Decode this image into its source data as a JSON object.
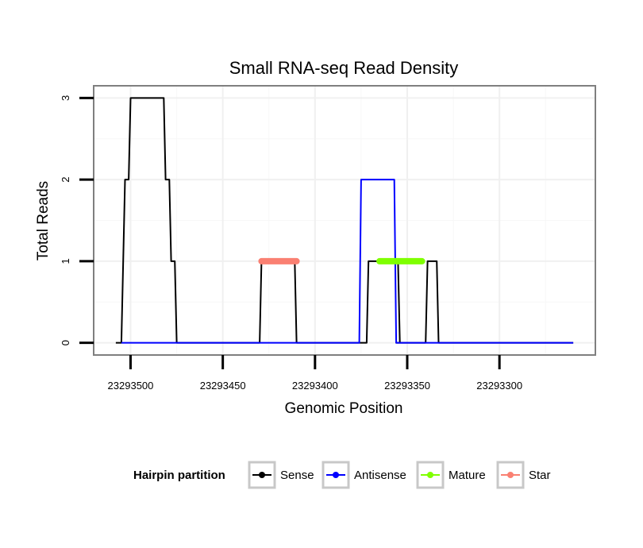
{
  "chart_data": {
    "type": "line",
    "title": "Small RNA-seq Read Density",
    "xlabel": "Genomic Position",
    "ylabel": "Total Reads",
    "x_reversed": true,
    "xlim": [
      23293520,
      23293248
    ],
    "ylim": [
      -0.15,
      3.15
    ],
    "x_ticks": [
      23293500,
      23293450,
      23293400,
      23293350,
      23293300
    ],
    "x_tick_labels": [
      "23293500",
      "23293450",
      "23293400",
      "23293350",
      "23293300"
    ],
    "y_ticks": [
      0,
      1,
      2,
      3
    ],
    "y_tick_labels": [
      "0",
      "1",
      "2",
      "3"
    ],
    "grid": true,
    "series": [
      {
        "name": "Sense",
        "color": "#000000",
        "x": [
          23293508,
          23293505,
          23293503,
          23293501,
          23293500,
          23293482,
          23293481,
          23293479,
          23293478,
          23293476,
          23293475,
          23293430,
          23293429,
          23293411,
          23293410,
          23293372,
          23293371,
          23293363,
          23293362,
          23293355,
          23293354,
          23293356,
          23293340,
          23293339,
          23293334,
          23293333,
          23293316,
          23293315,
          23293260
        ],
        "y": [
          0,
          0,
          2,
          2,
          3,
          3,
          2,
          2,
          1,
          1,
          0,
          0,
          1,
          1,
          0,
          0,
          1,
          1,
          1,
          1,
          0,
          0,
          0,
          1,
          1,
          0,
          0,
          0,
          0
        ]
      },
      {
        "name": "Antisense",
        "color": "#0000ff",
        "x": [
          23293505,
          23293376,
          23293375,
          23293357,
          23293356,
          23293260
        ],
        "y": [
          0,
          0,
          2,
          2,
          0,
          0
        ]
      },
      {
        "name": "Mature",
        "color": "#7fff00",
        "x": [
          23293365,
          23293342
        ],
        "y": [
          1,
          1
        ]
      },
      {
        "name": "Star",
        "color": "#fa8072",
        "x": [
          23293429,
          23293410
        ],
        "y": [
          1,
          1
        ]
      }
    ],
    "legend": {
      "title": "Hairpin partition",
      "position": "bottom",
      "entries": [
        "Sense",
        "Antisense",
        "Mature",
        "Star"
      ]
    }
  }
}
